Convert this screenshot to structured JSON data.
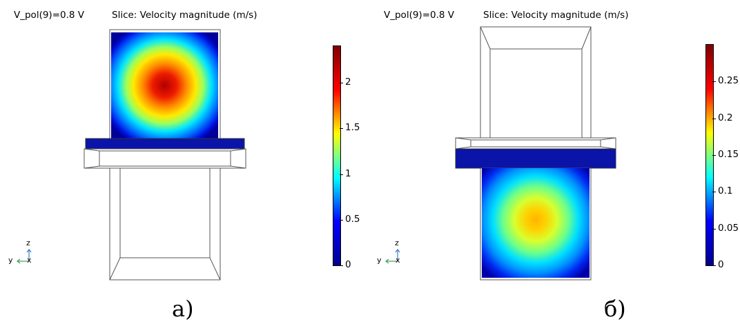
{
  "panel_a": {
    "param_label": "V_pol(9)=0.8 V",
    "plot_title": "Slice: Velocity magnitude (m/s)",
    "caption": "a)",
    "axes": {
      "z": "z",
      "y": "y",
      "x": "x"
    },
    "colorbar": {
      "min": 0,
      "max": 2.4,
      "ticks": [
        {
          "value": 0,
          "label": "0"
        },
        {
          "value": 0.5,
          "label": "0.5"
        },
        {
          "value": 1,
          "label": "1"
        },
        {
          "value": 1.5,
          "label": "1.5"
        },
        {
          "value": 2,
          "label": "2"
        }
      ]
    }
  },
  "panel_b": {
    "param_label": "V_pol(9)=0.8 V",
    "plot_title": "Slice: Velocity magnitude (m/s)",
    "caption": "б)",
    "axes": {
      "z": "z",
      "y": "y",
      "x": "x"
    },
    "colorbar": {
      "min": 0,
      "max": 0.3,
      "ticks": [
        {
          "value": 0,
          "label": "0"
        },
        {
          "value": 0.05,
          "label": "0.05"
        },
        {
          "value": 0.1,
          "label": "0.1"
        },
        {
          "value": 0.15,
          "label": "0.15"
        },
        {
          "value": 0.2,
          "label": "0.2"
        },
        {
          "value": 0.25,
          "label": "0.25"
        }
      ]
    }
  },
  "colormap": [
    "#00008f",
    "#0000ff",
    "#00ffff",
    "#ffff00",
    "#ff0000",
    "#800000"
  ]
}
